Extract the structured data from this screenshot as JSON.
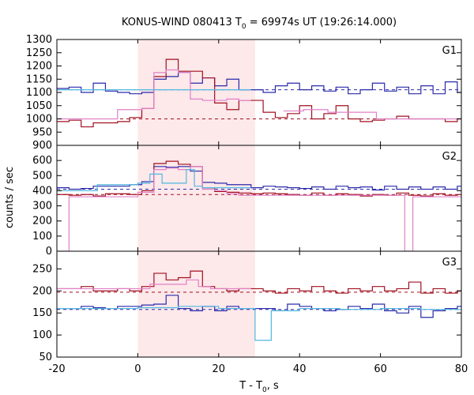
{
  "chart_data": {
    "type": "line",
    "title": {
      "main": "KONUS-WIND 080413 T",
      "sub": "0",
      "rest": " = 69974s UT (19:26:14.000)"
    },
    "xlabel": {
      "main": "T - T",
      "sub": "0",
      "rest": ", s"
    },
    "ylabel": "counts / sec",
    "xlim": [
      -20,
      80
    ],
    "x_ticks": [
      -20,
      0,
      20,
      40,
      60,
      80
    ],
    "highlight_interval": [
      0,
      29
    ],
    "colors": {
      "blue": "#2a2aaa",
      "red": "#a01020",
      "pink": "#e080c8",
      "cyan": "#50b8e0",
      "highlight": "#fde8ea"
    },
    "panels": [
      {
        "label": "G1",
        "ylim": [
          900,
          1300
        ],
        "y_ticks": [
          900,
          950,
          1000,
          1050,
          1100,
          1150,
          1200,
          1250,
          1300
        ],
        "bg_levels": [
          {
            "color": "blue",
            "value": 1110
          },
          {
            "color": "red",
            "value": 1000
          }
        ],
        "series": [
          {
            "color": "blue",
            "x": [
              -20,
              -17,
              -14,
              -11,
              -8,
              -5,
              -2,
              1,
              4,
              7,
              10,
              13,
              16,
              19,
              22,
              25,
              28,
              31,
              34,
              37,
              40,
              43,
              46,
              49,
              52,
              55,
              58,
              61,
              64,
              67,
              70,
              73,
              76,
              79,
              80
            ],
            "y": [
              1115,
              1120,
              1100,
              1135,
              1105,
              1100,
              1095,
              1100,
              1150,
              1160,
              1175,
              1135,
              1155,
              1125,
              1150,
              1110,
              1110,
              1100,
              1125,
              1135,
              1110,
              1125,
              1105,
              1120,
              1095,
              1110,
              1135,
              1105,
              1120,
              1095,
              1125,
              1095,
              1140,
              1100,
              1100
            ]
          },
          {
            "color": "red",
            "x": [
              -20,
              -17,
              -14,
              -11,
              -8,
              -5,
              -2,
              1,
              4,
              7,
              10,
              13,
              16,
              19,
              22,
              25,
              28,
              31,
              34,
              37,
              40,
              43,
              46,
              49,
              52,
              55,
              58,
              61,
              64,
              67,
              70,
              73,
              76,
              79,
              80
            ],
            "y": [
              990,
              995,
              970,
              985,
              985,
              990,
              1005,
              1040,
              1160,
              1225,
              1180,
              1180,
              1155,
              1060,
              1035,
              1070,
              1070,
              1025,
              1005,
              1020,
              1050,
              1000,
              1020,
              1050,
              1000,
              990,
              995,
              1000,
              1010,
              1000,
              1000,
              1000,
              990,
              1000,
              1000
            ]
          },
          {
            "color": "pink",
            "x": [
              -20,
              -5,
              1,
              4,
              7,
              10,
              13,
              16,
              19,
              22,
              25,
              28
            ],
            "y": [
              1000,
              1035,
              1040,
              1175,
              1185,
              1175,
              1075,
              1070,
              1070,
              1075,
              1070,
              1070
            ]
          },
          {
            "color": "pink",
            "x": [
              36,
              41,
              47,
              59,
              80
            ],
            "y": [
              1030,
              1035,
              1025,
              1000,
              1000
            ]
          },
          {
            "color": "cyan",
            "x": [
              -20,
              -6,
              0,
              28
            ],
            "y": [
              1110,
              1110,
              1110,
              1110
            ]
          }
        ]
      },
      {
        "label": "G2",
        "ylim": [
          0,
          700
        ],
        "y_ticks": [
          0,
          100,
          200,
          300,
          400,
          500,
          600
        ],
        "bg_levels": [
          {
            "color": "blue",
            "value": 410
          },
          {
            "color": "red",
            "value": 375
          }
        ],
        "series": [
          {
            "color": "blue",
            "x": [
              -20,
              -17,
              -14,
              -11,
              -8,
              -5,
              -2,
              1,
              4,
              7,
              10,
              13,
              16,
              19,
              22,
              25,
              28,
              31,
              34,
              37,
              40,
              43,
              46,
              49,
              52,
              55,
              58,
              61,
              64,
              67,
              70,
              73,
              76,
              79,
              80
            ],
            "y": [
              420,
              410,
              415,
              430,
              430,
              430,
              440,
              460,
              560,
              555,
              560,
              530,
              455,
              450,
              440,
              440,
              420,
              430,
              425,
              420,
              415,
              425,
              410,
              430,
              420,
              425,
              405,
              430,
              410,
              425,
              410,
              425,
              410,
              430,
              430
            ]
          },
          {
            "color": "red",
            "x": [
              -20,
              -17,
              -14,
              -11,
              -8,
              -5,
              -2,
              1,
              4,
              7,
              10,
              13,
              16,
              19,
              22,
              25,
              28,
              31,
              34,
              37,
              40,
              43,
              46,
              49,
              52,
              55,
              58,
              61,
              64,
              67,
              70,
              73,
              76,
              79,
              80
            ],
            "y": [
              375,
              370,
              375,
              365,
              380,
              380,
              375,
              400,
              580,
              595,
              575,
              560,
              420,
              395,
              390,
              385,
              380,
              385,
              380,
              375,
              370,
              385,
              370,
              380,
              375,
              365,
              375,
              370,
              385,
              370,
              365,
              380,
              370,
              375,
              375
            ]
          },
          {
            "color": "pink",
            "x": [
              -20,
              -18,
              -17,
              -2,
              0,
              4,
              7,
              10,
              13,
              16,
              19,
              22,
              25,
              28,
              31,
              65,
              66,
              68,
              80
            ],
            "y": [
              0,
              0,
              360,
              360,
              390,
              540,
              550,
              540,
              560,
              410,
              400,
              380,
              370,
              370,
              370,
              370,
              0,
              360,
              360
            ]
          },
          {
            "color": "cyan",
            "x": [
              -20,
              -10,
              0,
              3,
              6,
              9,
              12,
              14,
              16,
              28
            ],
            "y": [
              400,
              440,
              450,
              510,
              450,
              450,
              540,
              430,
              420,
              420
            ]
          }
        ]
      },
      {
        "label": "G3",
        "ylim": [
          50,
          290
        ],
        "y_ticks": [
          50,
          100,
          150,
          200,
          250
        ],
        "bg_levels": [
          {
            "color": "blue",
            "value": 158
          },
          {
            "color": "red",
            "value": 197
          }
        ],
        "series": [
          {
            "color": "blue",
            "x": [
              -20,
              -17,
              -14,
              -11,
              -8,
              -5,
              -2,
              1,
              4,
              7,
              10,
              13,
              16,
              19,
              22,
              25,
              28,
              31,
              34,
              37,
              40,
              43,
              46,
              49,
              52,
              55,
              58,
              61,
              64,
              67,
              70,
              73,
              76,
              79,
              80
            ],
            "y": [
              160,
              160,
              165,
              162,
              160,
              165,
              165,
              168,
              170,
              190,
              160,
              155,
              165,
              155,
              165,
              160,
              160,
              160,
              155,
              170,
              165,
              160,
              155,
              158,
              165,
              160,
              170,
              155,
              150,
              165,
              140,
              155,
              160,
              165,
              165
            ]
          },
          {
            "color": "red",
            "x": [
              -20,
              -17,
              -14,
              -11,
              -8,
              -5,
              -2,
              1,
              4,
              7,
              10,
              13,
              16,
              19,
              22,
              25,
              28,
              31,
              34,
              37,
              40,
              43,
              46,
              49,
              52,
              55,
              58,
              61,
              64,
              67,
              70,
              73,
              76,
              79,
              80
            ],
            "y": [
              205,
              205,
              210,
              200,
              200,
              205,
              200,
              210,
              240,
              225,
              230,
              245,
              210,
              205,
              200,
              205,
              205,
              200,
              195,
              205,
              200,
              210,
              200,
              195,
              205,
              200,
              210,
              200,
              205,
              220,
              195,
              205,
              195,
              200,
              200
            ]
          },
          {
            "color": "pink",
            "x": [
              -20,
              0,
              3,
              6,
              9,
              12,
              15,
              18,
              21,
              28
            ],
            "y": [
              205,
              205,
              215,
              215,
              215,
              225,
              210,
              205,
              205,
              205
            ]
          },
          {
            "color": "cyan",
            "x": [
              -20,
              0,
              10,
              20,
              28,
              29,
              32,
              33,
              40,
              50,
              60,
              70,
              80
            ],
            "y": [
              160,
              162,
              165,
              160,
              160,
              88,
              88,
              155,
              160,
              158,
              160,
              158,
              160
            ]
          }
        ]
      }
    ]
  }
}
